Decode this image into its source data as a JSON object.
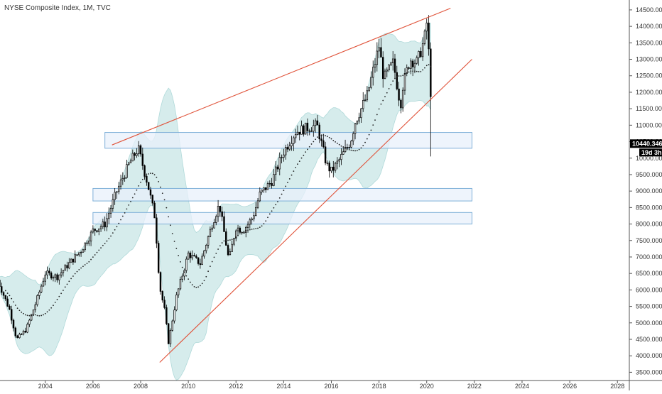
{
  "header": {
    "title": "NYSE Composite Index, 1M, TVC"
  },
  "price_badge": {
    "value": "10440.346",
    "countdown": "19d 3h"
  },
  "colors": {
    "background": "#ffffff",
    "candle": "#000000",
    "band_fill": "#d2ebeb",
    "band_stroke": "#a9d6d6",
    "trendline": "#e0533a",
    "zone_fill": "#e8f0fb",
    "zone_stroke": "#7fb0d8",
    "badge_bg": "#000000",
    "axis_text": "#333333"
  },
  "chart_data": {
    "type": "candlestick",
    "title": "NYSE Composite Index, 1M, TVC",
    "x_range": [
      2002.1,
      2028.5
    ],
    "y_range": [
      3250,
      14800
    ],
    "x_ticks": [
      "2004",
      "2006",
      "2008",
      "2010",
      "2012",
      "2014",
      "2016",
      "2018",
      "2020",
      "2022",
      "2024",
      "2026",
      "2028"
    ],
    "y_ticks": [
      "3500.000",
      "4000.000",
      "4500.000",
      "5000.000",
      "5500.000",
      "6000.000",
      "6500.000",
      "7000.000",
      "7500.000",
      "8000.000",
      "8500.000",
      "9000.000",
      "9500.000",
      "10000.000",
      "10500.000",
      "11000.000",
      "11500.000",
      "12000.000",
      "12500.000",
      "13000.000",
      "13500.000",
      "14000.000",
      "14500.000"
    ],
    "last_price": 10440.346,
    "price_path": [
      [
        2002.0,
        6300
      ],
      [
        2002.5,
        5400
      ],
      [
        2002.8,
        4500
      ],
      [
        2003.2,
        4800
      ],
      [
        2003.6,
        5600
      ],
      [
        2004.0,
        6500
      ],
      [
        2004.5,
        6400
      ],
      [
        2005.0,
        6800
      ],
      [
        2005.5,
        7200
      ],
      [
        2006.0,
        7800
      ],
      [
        2006.5,
        8000
      ],
      [
        2007.0,
        9000
      ],
      [
        2007.5,
        9800
      ],
      [
        2007.9,
        10300
      ],
      [
        2008.3,
        9200
      ],
      [
        2008.6,
        8200
      ],
      [
        2008.8,
        6100
      ],
      [
        2009.0,
        5400
      ],
      [
        2009.17,
        4400
      ],
      [
        2009.5,
        5800
      ],
      [
        2010.0,
        7100
      ],
      [
        2010.5,
        6800
      ],
      [
        2011.0,
        8000
      ],
      [
        2011.3,
        8600
      ],
      [
        2011.7,
        6900
      ],
      [
        2012.0,
        7900
      ],
      [
        2012.3,
        7800
      ],
      [
        2012.7,
        8200
      ],
      [
        2013.0,
        8900
      ],
      [
        2013.5,
        9300
      ],
      [
        2014.0,
        10200
      ],
      [
        2014.5,
        10800
      ],
      [
        2014.9,
        10900
      ],
      [
        2015.4,
        11000
      ],
      [
        2015.8,
        9800
      ],
      [
        2016.0,
        9600
      ],
      [
        2016.3,
        9900
      ],
      [
        2016.8,
        10500
      ],
      [
        2017.0,
        11100
      ],
      [
        2017.5,
        11900
      ],
      [
        2018.0,
        13400
      ],
      [
        2018.2,
        12400
      ],
      [
        2018.6,
        12900
      ],
      [
        2018.9,
        11600
      ],
      [
        2019.0,
        12200
      ],
      [
        2019.3,
        13000
      ],
      [
        2019.6,
        12900
      ],
      [
        2019.9,
        13600
      ],
      [
        2020.0,
        14100
      ],
      [
        2020.15,
        12500
      ],
      [
        2020.22,
        10440
      ]
    ],
    "overlays": {
      "upper_trendline": [
        [
          2006.8,
          10400
        ],
        [
          2021.0,
          14550
        ]
      ],
      "lower_trendline": [
        [
          2008.8,
          3800
        ],
        [
          2021.9,
          13000
        ]
      ],
      "horizontal_zones": [
        {
          "x_start": 2006.5,
          "x_end": 2021.9,
          "y_low": 10300,
          "y_high": 10780
        },
        {
          "x_start": 2006.0,
          "x_end": 2021.9,
          "y_low": 8700,
          "y_high": 9080
        },
        {
          "x_start": 2006.0,
          "x_end": 2021.9,
          "y_low": 8000,
          "y_high": 8350
        }
      ]
    }
  }
}
